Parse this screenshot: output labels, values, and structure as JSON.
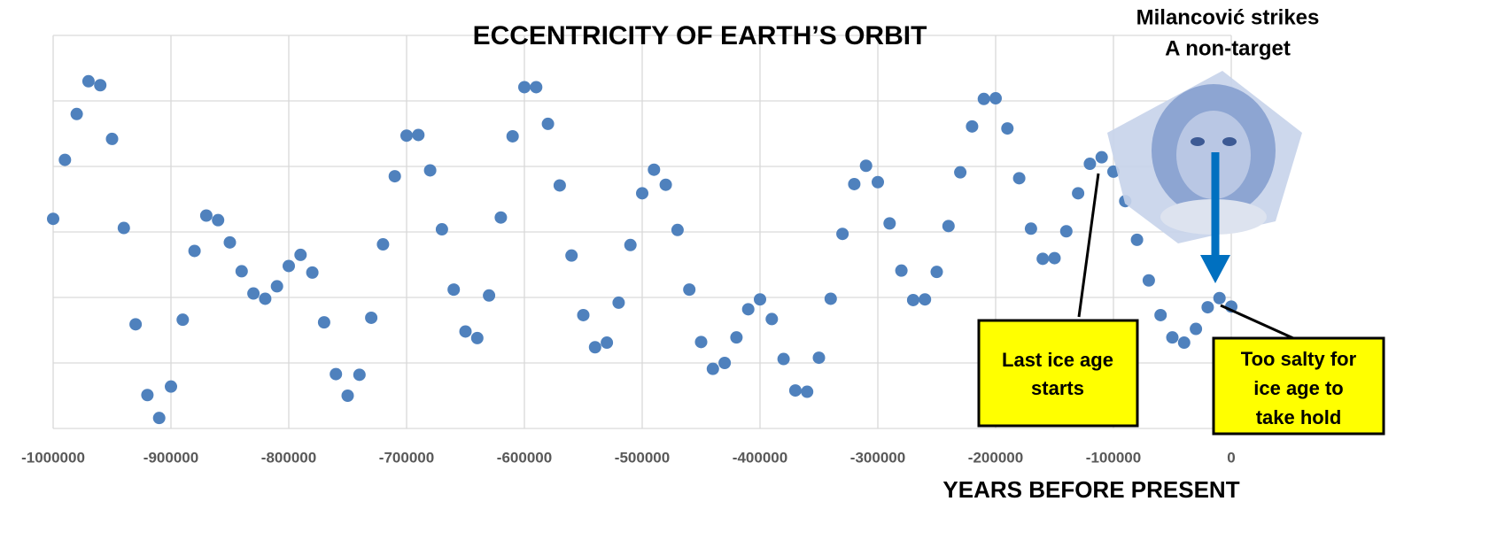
{
  "chart_data": {
    "type": "scatter",
    "title": "ECCENTRICITY OF EARTH’S ORBIT",
    "x_label": "YEARS BEFORE PRESENT",
    "x": [
      -1000000,
      -990000,
      -980000,
      -970000,
      -960000,
      -950000,
      -940000,
      -930000,
      -920000,
      -910000,
      -900000,
      -890000,
      -880000,
      -870000,
      -860000,
      -850000,
      -840000,
      -830000,
      -820000,
      -810000,
      -800000,
      -790000,
      -780000,
      -770000,
      -760000,
      -750000,
      -740000,
      -730000,
      -720000,
      -710000,
      -700000,
      -690000,
      -680000,
      -670000,
      -660000,
      -650000,
      -640000,
      -630000,
      -620000,
      -610000,
      -600000,
      -590000,
      -580000,
      -570000,
      -560000,
      -550000,
      -540000,
      -530000,
      -520000,
      -510000,
      -500000,
      -490000,
      -480000,
      -470000,
      -460000,
      -450000,
      -440000,
      -430000,
      -420000,
      -410000,
      -400000,
      -390000,
      -380000,
      -370000,
      -360000,
      -350000,
      -340000,
      -330000,
      -320000,
      -310000,
      -300000,
      -290000,
      -280000,
      -270000,
      -260000,
      -250000,
      -240000,
      -230000,
      -220000,
      -210000,
      -200000,
      -190000,
      -180000,
      -170000,
      -160000,
      -150000,
      -140000,
      -130000,
      -120000,
      -110000,
      -100000,
      -90000,
      -80000,
      -70000,
      -60000,
      -50000,
      -40000,
      -30000,
      -20000,
      -10000,
      0
    ],
    "values": [
      0.032,
      0.041,
      0.048,
      0.053,
      0.0524,
      0.0442,
      0.0306,
      0.0159,
      0.0051,
      0.0016,
      0.0064,
      0.0166,
      0.0271,
      0.0325,
      0.0318,
      0.0284,
      0.024,
      0.0206,
      0.0198,
      0.0217,
      0.0248,
      0.0265,
      0.0238,
      0.0162,
      0.0083,
      0.005,
      0.0082,
      0.0169,
      0.0281,
      0.0385,
      0.0447,
      0.0448,
      0.0394,
      0.0304,
      0.0212,
      0.0148,
      0.0138,
      0.0203,
      0.0322,
      0.0446,
      0.0521,
      0.0521,
      0.0465,
      0.0371,
      0.0264,
      0.0173,
      0.0124,
      0.0131,
      0.0192,
      0.028,
      0.0359,
      0.0395,
      0.0372,
      0.0303,
      0.0212,
      0.0132,
      0.0091,
      0.01,
      0.0139,
      0.0182,
      0.0197,
      0.0167,
      0.0106,
      0.0058,
      0.0056,
      0.0108,
      0.0198,
      0.0297,
      0.0373,
      0.0401,
      0.0376,
      0.0313,
      0.0241,
      0.0196,
      0.0197,
      0.0239,
      0.0309,
      0.0391,
      0.0461,
      0.0503,
      0.0504,
      0.0458,
      0.0382,
      0.0305,
      0.0259,
      0.026,
      0.0301,
      0.0359,
      0.0404,
      0.0414,
      0.0392,
      0.0347,
      0.0288,
      0.0226,
      0.0173,
      0.0139,
      0.0131,
      0.0152,
      0.0185,
      0.0199,
      0.0186
    ],
    "color": "#4f81bd",
    "xlim": [
      -1000000,
      0
    ],
    "xticks": [
      -1000000,
      -900000,
      -800000,
      -700000,
      -600000,
      -500000,
      -400000,
      -300000,
      -200000,
      -100000,
      0
    ],
    "ylim": [
      0,
      0.06
    ],
    "yticks": [
      0,
      0.01,
      0.02,
      0.03,
      0.04,
      0.05,
      0.06
    ],
    "grid": true,
    "annotations": [
      {
        "lines": [
          "Milancović strikes",
          "A non-target"
        ]
      },
      {
        "lines": [
          "Last ice age",
          "starts"
        ]
      },
      {
        "lines": [
          "Too salty for",
          "ice age to",
          "take hold"
        ]
      }
    ]
  }
}
